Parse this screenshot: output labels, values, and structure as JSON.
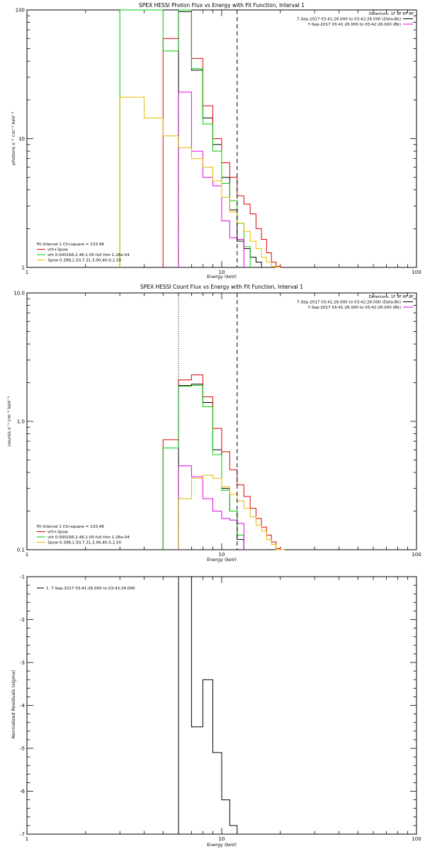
{
  "colors": {
    "black": "#000000",
    "red": "#e00000",
    "green": "#00cc00",
    "magenta": "#e000e0",
    "yellow": "#e6b800"
  },
  "chart_data": [
    {
      "type": "line",
      "title": "SPEX HESSI Photon Flux vs Energy with Fit Function, Interval 1",
      "xlabel": "Energy (keV)",
      "ylabel": "photons s⁻¹ cm⁻² keV⁻¹",
      "xscale": "log",
      "yscale": "log",
      "xlim": [
        1,
        100
      ],
      "ylim": [
        1,
        100
      ],
      "xticks": [
        {
          "v": 1,
          "t": "1"
        },
        {
          "v": 10,
          "t": "10"
        },
        {
          "v": 100,
          "t": "100"
        }
      ],
      "yticks": [
        {
          "v": 1,
          "t": "1"
        },
        {
          "v": 10,
          "t": "10"
        },
        {
          "v": 100,
          "t": "100"
        }
      ],
      "vlines": [
        {
          "x": 6,
          "style": "dotted"
        },
        {
          "x": 12,
          "style": "dashed"
        }
      ],
      "legend_tr": [
        {
          "text": "Detectors: 1F 3F 6F 8F"
        },
        {
          "text": "7-Sep-2017 03:41:26.000 to 03:42:26.000 (Data-Bk)",
          "color": "black"
        },
        {
          "text": "7-Sep-2017 03:41:26.000 to 03:42:26.000 (Bk)",
          "color": "magenta"
        }
      ],
      "legend_bl": [
        {
          "text": "Fit Interval 1    Chi-square = 133.48"
        },
        {
          "text": "vth+3pow",
          "color": "red"
        },
        {
          "text": "vth 0.000166,2.46,1.00  full thin 1.26e-04",
          "color": "green"
        },
        {
          "text": "3pow 0.398,1.50,7.31,3.00,40.0,2.50",
          "color": "yellow"
        }
      ],
      "edges": [
        3,
        4,
        5,
        6,
        7,
        8,
        9,
        10,
        11,
        12,
        13,
        14,
        15,
        16,
        17,
        18,
        19,
        20
      ],
      "series": [
        {
          "color": "black",
          "values": [
            null,
            null,
            null,
            97,
            34,
            14.5,
            9,
            5,
            2.8,
            1.6,
            1.4,
            1.2,
            1.1,
            null,
            null,
            null,
            null
          ]
        },
        {
          "color": "red",
          "values": [
            null,
            null,
            60,
            100,
            42,
            18,
            10,
            6.5,
            5,
            3.6,
            3.1,
            2.6,
            2.0,
            1.65,
            1.3,
            1.1,
            1.02
          ]
        },
        {
          "color": "green",
          "values": [
            100,
            100,
            48,
            100,
            35,
            13,
            8,
            4.5,
            3.3,
            2.2,
            1.45,
            null,
            null,
            null,
            null,
            null,
            null
          ]
        },
        {
          "color": "magenta",
          "values": [
            null,
            null,
            null,
            23,
            8,
            5,
            4.3,
            2.3,
            1.7,
            1.65,
            null,
            null,
            null,
            null,
            null,
            null,
            null
          ]
        },
        {
          "color": "yellow",
          "values": [
            21,
            14.5,
            10.5,
            8.5,
            7,
            6,
            4.7,
            3.5,
            2.7,
            2.2,
            1.9,
            1.6,
            1.4,
            1.2,
            1.1,
            1.02,
            1.0
          ]
        }
      ]
    },
    {
      "type": "line",
      "title": "SPEX HESSI Count Flux vs Energy with Fit Function, Interval 1",
      "xlabel": "Energy (keV)",
      "ylabel": "counts s⁻¹ cm⁻² keV⁻¹",
      "xscale": "log",
      "yscale": "log",
      "xlim": [
        1,
        100
      ],
      "ylim": [
        0.1,
        10
      ],
      "xticks": [
        {
          "v": 1,
          "t": "1"
        },
        {
          "v": 10,
          "t": "10"
        },
        {
          "v": 100,
          "t": "100"
        }
      ],
      "yticks": [
        {
          "v": 0.1,
          "t": "0.1"
        },
        {
          "v": 1,
          "t": "1.0"
        },
        {
          "v": 10,
          "t": "10.0"
        }
      ],
      "vlines": [
        {
          "x": 6,
          "style": "dotted"
        },
        {
          "x": 12,
          "style": "dashed"
        }
      ],
      "legend_tr": [
        {
          "text": "Detectors: 1F 3F 6F 8F"
        },
        {
          "text": "7-Sep-2017 03:41:26.000 to 03:42:26.000 (Data-Bk)",
          "color": "black"
        },
        {
          "text": "7-Sep-2017 03:41:26.000 to 03:42:26.000 (Bk)",
          "color": "magenta"
        }
      ],
      "legend_bl": [
        {
          "text": "Fit Interval 1    Chi-square = 133.48"
        },
        {
          "text": "vth+3pow",
          "color": "red"
        },
        {
          "text": "vth 0.000166,2.46,1.00  full thin 1.26e-04",
          "color": "green"
        },
        {
          "text": "3pow 0.398,1.50,7.31,3.00,40.0,2.50",
          "color": "yellow"
        }
      ],
      "edges": [
        5,
        6,
        7,
        8,
        9,
        10,
        11,
        12,
        13,
        14,
        15,
        16,
        17,
        18,
        19,
        20,
        21
      ],
      "series": [
        {
          "color": "black",
          "values": [
            null,
            1.9,
            1.95,
            1.4,
            0.6,
            0.3,
            0.2,
            0.12,
            null,
            null,
            null,
            null,
            null,
            null,
            null,
            null
          ]
        },
        {
          "color": "red",
          "values": [
            0.72,
            2.1,
            2.3,
            1.55,
            0.88,
            0.58,
            0.42,
            0.32,
            0.26,
            0.21,
            0.175,
            0.15,
            0.13,
            0.115,
            0.102,
            0.1
          ]
        },
        {
          "color": "green",
          "values": [
            0.62,
            1.88,
            1.9,
            1.3,
            0.55,
            0.29,
            0.2,
            0.13,
            null,
            null,
            null,
            null,
            null,
            null,
            null,
            null
          ]
        },
        {
          "color": "magenta",
          "values": [
            null,
            0.45,
            0.37,
            0.25,
            0.2,
            0.175,
            0.17,
            0.16,
            null,
            null,
            null,
            null,
            null,
            null,
            null,
            null
          ]
        },
        {
          "color": "yellow",
          "values": [
            null,
            0.25,
            0.36,
            0.38,
            0.36,
            0.31,
            0.27,
            0.24,
            0.21,
            0.18,
            0.155,
            0.14,
            0.12,
            0.11,
            0.1,
            0.1
          ]
        }
      ]
    },
    {
      "type": "line",
      "title": "",
      "xlabel": "Energy (keV)",
      "ylabel": "Normalized Residuals (sigma)",
      "xscale": "log",
      "yscale": "linear",
      "xlim": [
        1,
        100
      ],
      "ylim": [
        -7,
        -1
      ],
      "xticks": [
        {
          "v": 1,
          "t": "1"
        },
        {
          "v": 10,
          "t": "10"
        },
        {
          "v": 100,
          "t": "100"
        }
      ],
      "yticks": [
        {
          "v": -1,
          "t": "-1"
        },
        {
          "v": -2,
          "t": "-2"
        },
        {
          "v": -3,
          "t": "-3"
        },
        {
          "v": -4,
          "t": "-4"
        },
        {
          "v": -5,
          "t": "-5"
        },
        {
          "v": -6,
          "t": "-6"
        },
        {
          "v": -7,
          "t": "-7"
        }
      ],
      "vlines": [],
      "legend_tr": [],
      "legend_tl": [
        {
          "text": "1.  7-Sep-2017 03:41:26.000 to 03:42:26.000",
          "color": "black"
        }
      ],
      "legend_bl": [],
      "edges": [
        6,
        7,
        8,
        9,
        10,
        11,
        12
      ],
      "series": [
        {
          "color": "black",
          "values": [
            -1.0,
            -4.5,
            -3.4,
            -5.1,
            -6.2,
            -6.8
          ]
        }
      ]
    }
  ]
}
